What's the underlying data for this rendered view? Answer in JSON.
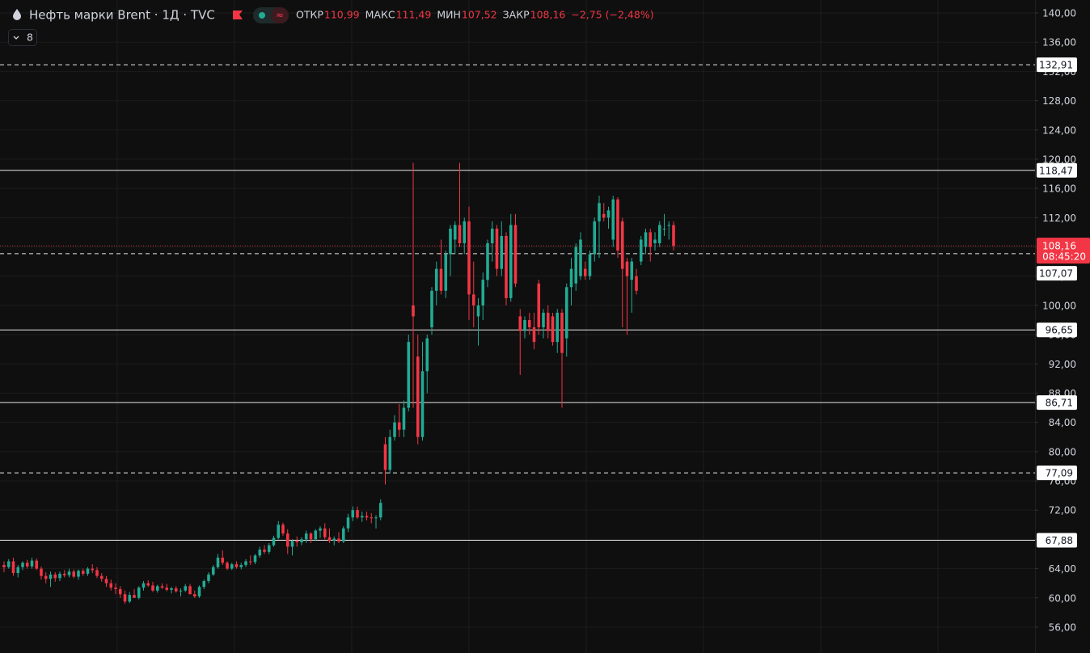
{
  "chart_data": {
    "type": "candlestick",
    "title": "Нефть марки Brent · 1Д · TVC",
    "indicator_count": "8",
    "ohlc_legend": [
      {
        "label": "ОТКР",
        "value": "110,99"
      },
      {
        "label": "МАКС",
        "value": "111,49"
      },
      {
        "label": "МИН",
        "value": "107,52"
      },
      {
        "label": "ЗАКР",
        "value": "108,16"
      }
    ],
    "change": "−2,75 (−2,48%)",
    "up_color": "#22ab94",
    "down_color": "#f23645",
    "ylim": [
      52.46,
      141.77
    ],
    "yticks": [
      {
        "value": 140,
        "label": "140,00"
      },
      {
        "value": 136,
        "label": "136,00"
      },
      {
        "value": 132,
        "label": "132,00"
      },
      {
        "value": 128,
        "label": "128,00"
      },
      {
        "value": 124,
        "label": "124,00"
      },
      {
        "value": 120,
        "label": "120,00"
      },
      {
        "value": 116,
        "label": "116,00"
      },
      {
        "value": 112,
        "label": "112,00"
      },
      {
        "value": 108,
        "label": "108,00"
      },
      {
        "value": 104,
        "label": "104,00"
      },
      {
        "value": 100,
        "label": "100,00"
      },
      {
        "value": 96,
        "label": "96,00"
      },
      {
        "value": 92,
        "label": "92,00"
      },
      {
        "value": 88,
        "label": "88,00"
      },
      {
        "value": 84,
        "label": "84,00"
      },
      {
        "value": 80,
        "label": "80,00"
      },
      {
        "value": 76,
        "label": "76,00"
      },
      {
        "value": 72,
        "label": "72,00"
      },
      {
        "value": 68,
        "label": "68,00"
      },
      {
        "value": 64,
        "label": "64,00"
      },
      {
        "value": 60,
        "label": "60,00"
      },
      {
        "value": 56,
        "label": "56,00"
      }
    ],
    "grid": true,
    "levels": [
      {
        "value": 132.91,
        "label": "132,91",
        "style": "dashed"
      },
      {
        "value": 118.47,
        "label": "118,47",
        "style": "solid"
      },
      {
        "value": 107.07,
        "label": "107,07",
        "style": "dashed"
      },
      {
        "value": 96.65,
        "label": "96,65",
        "style": "solid"
      },
      {
        "value": 86.71,
        "label": "86,71",
        "style": "solid"
      },
      {
        "value": 77.09,
        "label": "77,09",
        "style": "dashed"
      },
      {
        "value": 67.88,
        "label": "67,88",
        "style": "solid"
      }
    ],
    "last_price": {
      "value": 108.16,
      "label": "108,16",
      "countdown": "08:45:20"
    },
    "ohlc": [
      [
        64.5,
        65,
        63.5,
        64.2
      ],
      [
        64.2,
        65.3,
        64,
        65
      ],
      [
        65,
        65.5,
        63,
        63.4
      ],
      [
        63.4,
        64.5,
        62.8,
        64.2
      ],
      [
        64.2,
        65,
        63.8,
        64.8
      ],
      [
        64.8,
        65.2,
        64,
        64.3
      ],
      [
        64.3,
        65.5,
        64,
        65.1
      ],
      [
        65.1,
        65.4,
        63.8,
        64
      ],
      [
        64,
        64.3,
        62.5,
        63
      ],
      [
        63,
        63.5,
        62,
        62.6
      ],
      [
        62.6,
        63.6,
        61.5,
        63.2
      ],
      [
        63.2,
        63.5,
        62.2,
        62.7
      ],
      [
        62.7,
        63.6,
        62.3,
        63.3
      ],
      [
        63.3,
        63.8,
        62.8,
        63.1
      ],
      [
        63.1,
        64,
        62.8,
        63.6
      ],
      [
        63.6,
        63.9,
        62.7,
        62.9
      ],
      [
        62.9,
        63.9,
        62.5,
        63.7
      ],
      [
        63.7,
        64,
        63,
        63.3
      ],
      [
        63.3,
        64.2,
        63,
        64
      ],
      [
        64,
        64.6,
        63.4,
        63.8
      ],
      [
        63.8,
        64.2,
        62.7,
        63
      ],
      [
        63,
        63.4,
        62.2,
        62.6
      ],
      [
        62.6,
        63,
        61.5,
        62
      ],
      [
        62,
        62.5,
        61,
        61.4
      ],
      [
        61.4,
        62,
        60.5,
        61.2
      ],
      [
        61.2,
        61.6,
        60,
        60.5
      ],
      [
        60.5,
        61,
        59.2,
        59.5
      ],
      [
        59.5,
        60.8,
        59.3,
        60.4
      ],
      [
        60.4,
        61.2,
        60,
        60
      ],
      [
        60,
        61.6,
        59.8,
        61.4
      ],
      [
        61.4,
        62.3,
        61,
        62
      ],
      [
        62,
        62.4,
        61.5,
        61.7
      ],
      [
        61.7,
        62.2,
        60.8,
        61
      ],
      [
        61,
        61.8,
        60.7,
        61.6
      ],
      [
        61.6,
        62,
        61.2,
        61.4
      ],
      [
        61.4,
        61.9,
        60.9,
        61.1
      ],
      [
        61.1,
        61.5,
        60.6,
        61.3
      ],
      [
        61.3,
        61.6,
        60.7,
        60.9
      ],
      [
        60.9,
        61.3,
        60.2,
        61
      ],
      [
        61,
        61.9,
        60.8,
        61.6
      ],
      [
        61.6,
        61.9,
        60.5,
        60.5
      ],
      [
        60.5,
        61,
        60,
        60.2
      ],
      [
        60.2,
        61.7,
        60,
        61.5
      ],
      [
        61.5,
        62.5,
        61.2,
        62.3
      ],
      [
        62.3,
        63.5,
        62,
        63.2
      ],
      [
        63.2,
        64.5,
        63,
        64.2
      ],
      [
        64.2,
        66,
        64,
        65.5
      ],
      [
        65.5,
        66.5,
        64.5,
        64.8
      ],
      [
        64.8,
        65,
        63.8,
        64
      ],
      [
        64,
        64.8,
        63.8,
        64.6
      ],
      [
        64.6,
        65,
        64,
        64.2
      ],
      [
        64.2,
        64.8,
        63.9,
        64.5
      ],
      [
        64.5,
        65.3,
        64.2,
        65
      ],
      [
        65,
        65.8,
        64.5,
        64.9
      ],
      [
        64.9,
        66,
        64.6,
        65.8
      ],
      [
        65.8,
        67,
        65.5,
        66.6
      ],
      [
        66.6,
        67.2,
        66,
        66.3
      ],
      [
        66.3,
        67.5,
        66,
        67.2
      ],
      [
        67.2,
        68.5,
        67,
        68.2
      ],
      [
        68.2,
        70.5,
        68,
        70
      ],
      [
        70,
        70.3,
        68.5,
        68.8
      ],
      [
        68.8,
        69.4,
        66,
        67
      ],
      [
        67,
        68,
        65.8,
        67.8
      ],
      [
        67.8,
        68.4,
        67,
        67.6
      ],
      [
        67.6,
        68.3,
        67.2,
        68
      ],
      [
        68,
        69.2,
        67.5,
        68.8
      ],
      [
        68.8,
        69,
        67.5,
        68
      ],
      [
        68,
        69.4,
        67.8,
        69.2
      ],
      [
        69.2,
        69.8,
        68.2,
        69.5
      ],
      [
        69.5,
        70.2,
        68,
        68.3
      ],
      [
        68.3,
        69.5,
        67.5,
        67.8
      ],
      [
        67.8,
        68.4,
        67.2,
        68.1
      ],
      [
        68.1,
        69,
        67.5,
        67.7
      ],
      [
        67.7,
        69.8,
        67.5,
        69.5
      ],
      [
        69.5,
        71.5,
        69,
        71
      ],
      [
        71,
        72.5,
        70.5,
        72
      ],
      [
        72,
        72.5,
        70.8,
        71
      ],
      [
        71,
        71.8,
        70.4,
        71.2
      ],
      [
        71.2,
        71.8,
        70.6,
        71
      ],
      [
        71,
        71.6,
        70.2,
        70.9
      ],
      [
        70.9,
        71.3,
        69.5,
        71
      ],
      [
        71,
        73.5,
        70.6,
        73
      ],
      [
        81,
        82,
        75.5,
        77.5
      ],
      [
        77.5,
        83,
        77,
        82
      ],
      [
        82,
        85,
        81.5,
        84
      ],
      [
        84,
        86.5,
        82,
        83
      ],
      [
        83,
        87,
        82,
        86
      ],
      [
        86,
        96,
        85.5,
        95
      ],
      [
        100,
        119.5,
        86,
        98.5
      ],
      [
        93,
        96,
        81,
        82
      ],
      [
        82,
        95,
        81.5,
        91
      ],
      [
        91,
        96,
        88,
        95.5
      ],
      [
        97,
        102.5,
        96,
        102
      ],
      [
        102,
        106,
        100,
        105
      ],
      [
        105,
        109,
        101.5,
        102
      ],
      [
        102,
        107.5,
        101,
        107
      ],
      [
        107,
        111,
        104,
        110.5
      ],
      [
        109,
        111.5,
        107,
        111
      ],
      [
        111,
        119.5,
        108,
        108.5
      ],
      [
        108.5,
        112,
        107,
        111.5
      ],
      [
        111.5,
        113.5,
        98,
        101.5
      ],
      [
        101.5,
        106,
        97,
        100
      ],
      [
        98.5,
        101,
        94.5,
        100
      ],
      [
        100,
        104.5,
        98,
        103.5
      ],
      [
        103.5,
        109,
        102.5,
        108.5
      ],
      [
        108.5,
        111.5,
        106,
        110.5
      ],
      [
        110.5,
        111,
        104,
        105
      ],
      [
        105,
        111.5,
        104,
        109.5
      ],
      [
        109.5,
        110,
        100,
        101
      ],
      [
        101,
        112.5,
        100.5,
        111
      ],
      [
        111,
        112.5,
        102.5,
        103
      ],
      [
        98.5,
        99.5,
        90.5,
        96.5
      ],
      [
        96.5,
        98.5,
        95.5,
        98
      ],
      [
        98,
        99,
        96,
        97
      ],
      [
        97,
        99,
        94,
        95
      ],
      [
        103,
        103.5,
        96,
        97
      ],
      [
        97,
        99.5,
        95.5,
        99
      ],
      [
        99,
        100,
        95.5,
        96.5
      ],
      [
        98.5,
        99,
        94.5,
        95
      ],
      [
        95,
        99.5,
        93.5,
        99
      ],
      [
        99,
        99.5,
        86,
        93.5
      ],
      [
        95.5,
        103,
        93,
        102.5
      ],
      [
        102.5,
        106.5,
        100,
        105
      ],
      [
        103,
        108.5,
        102,
        108
      ],
      [
        104,
        110,
        103.5,
        109
      ],
      [
        105,
        106,
        103.5,
        104
      ],
      [
        104,
        107.5,
        103.5,
        107
      ],
      [
        107,
        112,
        106,
        111.5
      ],
      [
        111.5,
        115,
        106.5,
        114
      ],
      [
        112.5,
        114,
        111.5,
        112
      ],
      [
        112,
        113.5,
        110.5,
        113
      ],
      [
        109,
        115,
        108,
        114.5
      ],
      [
        114.5,
        114.8,
        106.5,
        107.5
      ],
      [
        111.5,
        112,
        97,
        105
      ],
      [
        106,
        106.5,
        96,
        104
      ],
      [
        103.5,
        106.5,
        99,
        106
      ],
      [
        104,
        105,
        101.5,
        102
      ],
      [
        106,
        109.5,
        105.5,
        109
      ],
      [
        108,
        110.5,
        107,
        110
      ],
      [
        110,
        110.5,
        106,
        108
      ],
      [
        108.5,
        110,
        107.5,
        109
      ],
      [
        108.5,
        111.5,
        108,
        111
      ],
      [
        110.5,
        112.5,
        109.5,
        110.5
      ],
      [
        111,
        111.5,
        109,
        111
      ],
      [
        110.99,
        111.49,
        107.52,
        108.16
      ]
    ]
  }
}
